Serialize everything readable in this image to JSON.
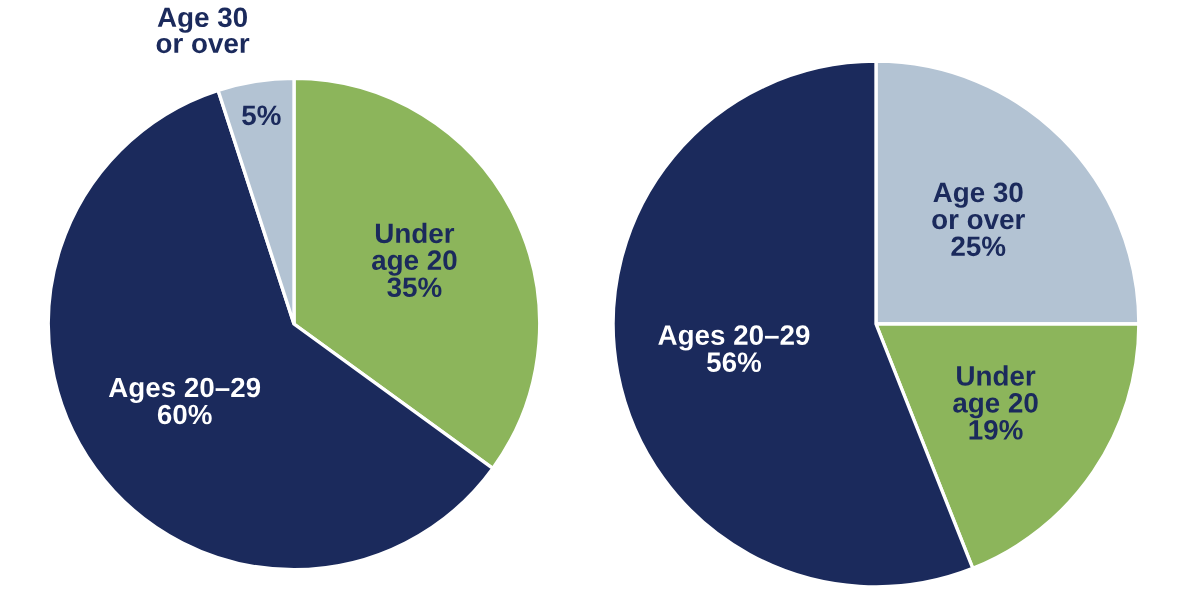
{
  "chart_data": [
    {
      "type": "pie",
      "categories": [
        "Under\nage 20",
        "Ages 20–29",
        "Age 30\nor over"
      ],
      "values": [
        35,
        60,
        5
      ],
      "value_labels": [
        "35%",
        "60%",
        "5%"
      ],
      "colors": [
        "#8cb55b",
        "#1b2a5c",
        "#b3c3d3"
      ]
    },
    {
      "type": "pie",
      "categories": [
        "Age 30\nor over",
        "Under\nage 20",
        "Ages 20–29"
      ],
      "values": [
        25,
        19,
        56
      ],
      "value_labels": [
        "25%",
        "19%",
        "56%"
      ],
      "colors": [
        "#b3c3d3",
        "#8cb55b",
        "#1b2a5c"
      ]
    }
  ]
}
